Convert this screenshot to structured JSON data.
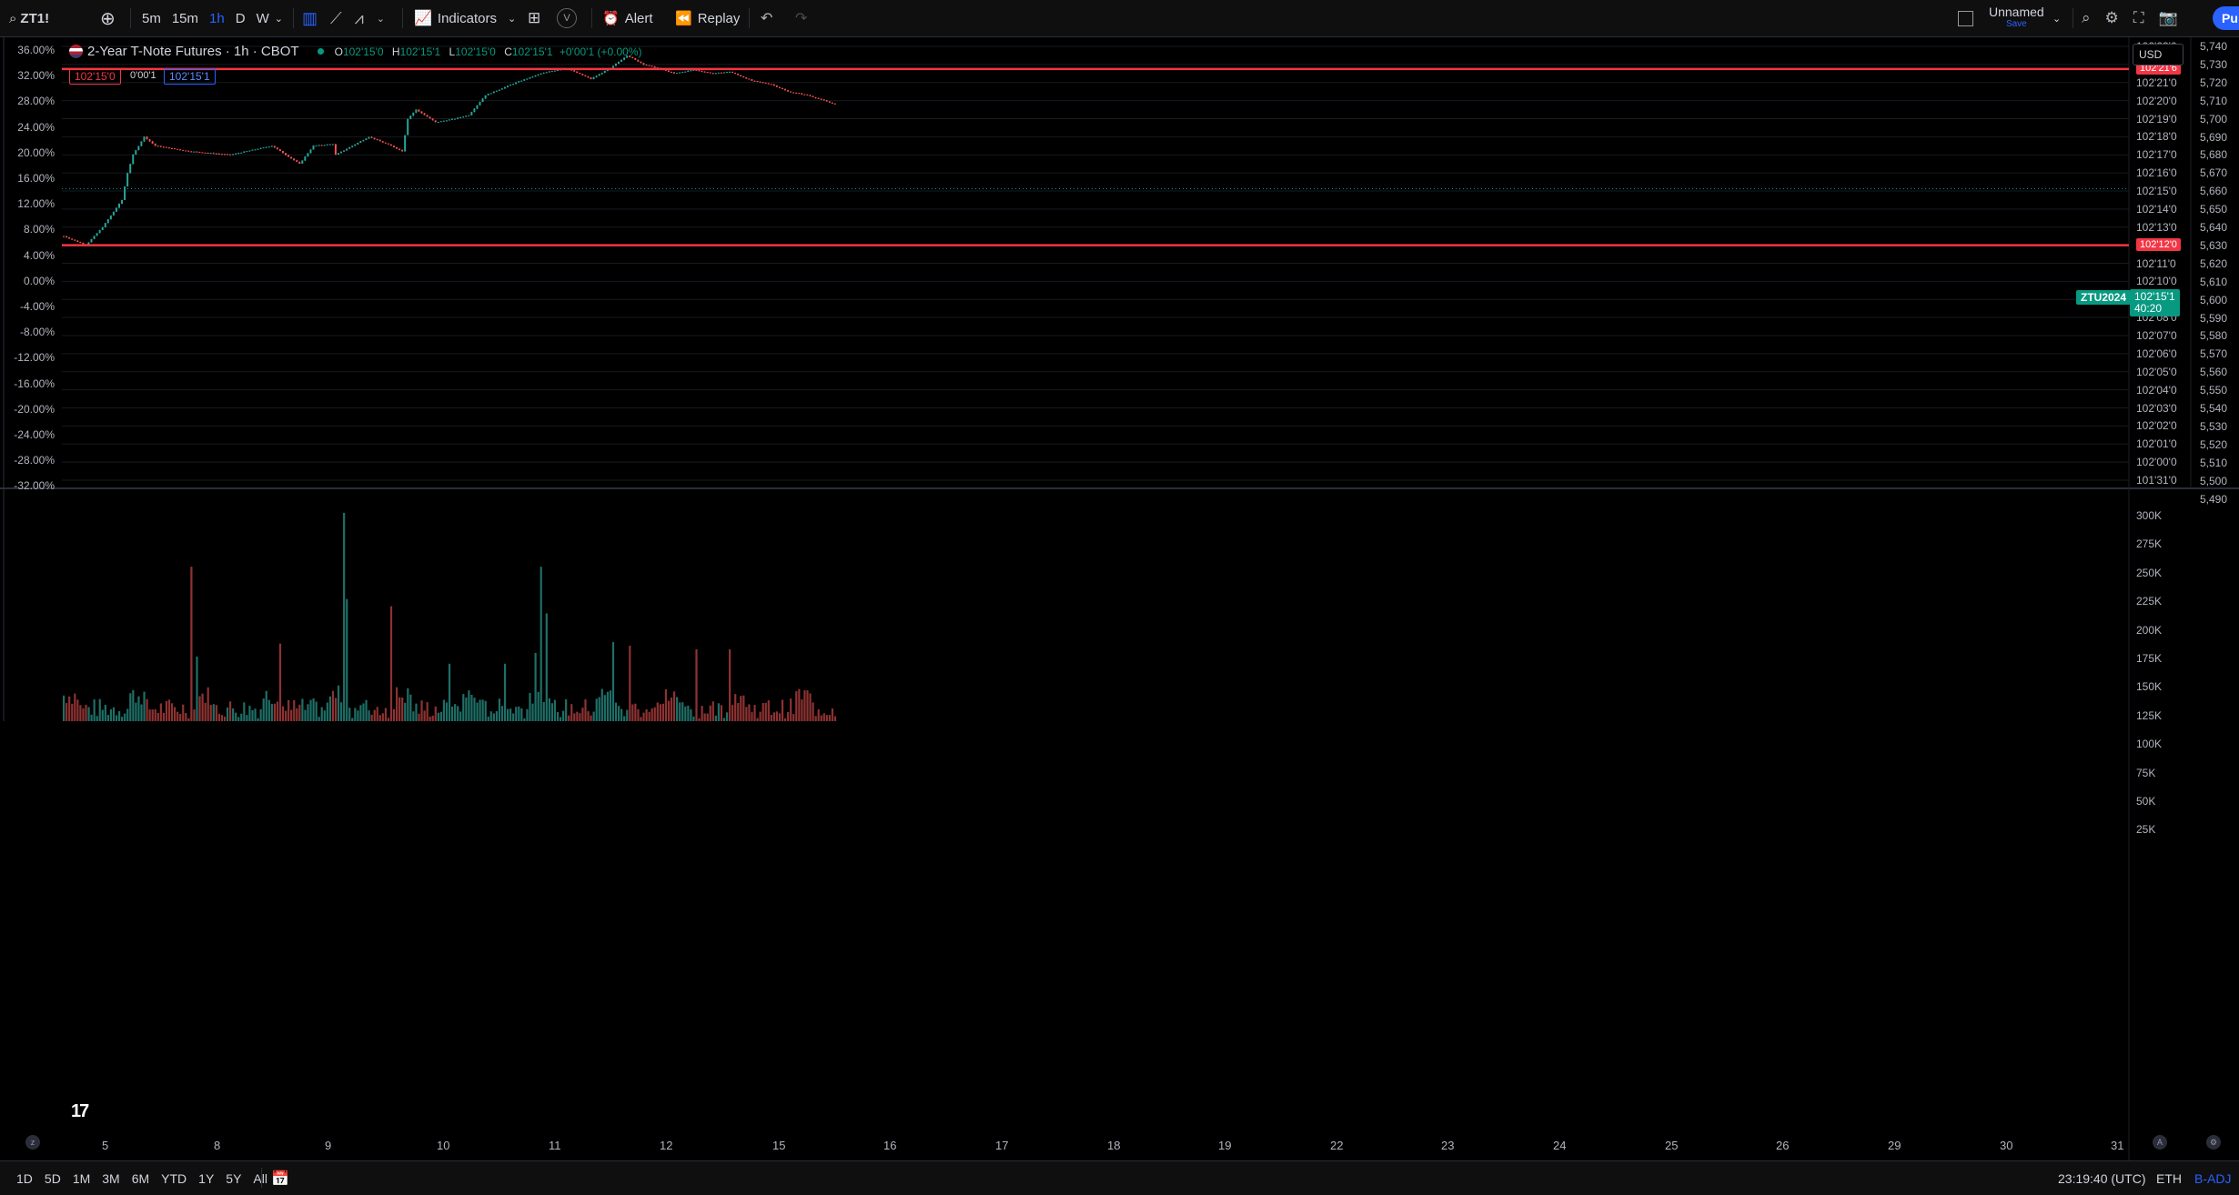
{
  "symbol": "ZT1!",
  "intervals": [
    "5m",
    "15m",
    "1h",
    "D",
    "W"
  ],
  "active_interval": "1h",
  "toolbar": {
    "indicators": "Indicators",
    "alert": "Alert",
    "replay": "Replay",
    "layout_name": "Unnamed",
    "layout_sub": "Save",
    "publish": "Pu"
  },
  "legend": {
    "title": "2-Year T-Note Futures · 1h · CBOT",
    "o_label": "O",
    "o": "102'15'0",
    "h_label": "H",
    "h": "102'15'1",
    "l_label": "L",
    "l": "102'15'0",
    "c_label": "C",
    "c": "102'15'1",
    "change": "+0'00'1 (+0.00%)",
    "bid": "102'15'0",
    "spread": "0'00'1",
    "ask": "102'15'1"
  },
  "currency": "USD",
  "right_price_ticks": [
    "102'23'0",
    "102'22'0",
    "102'21'0",
    "102'20'0",
    "102'19'0",
    "102'18'0",
    "102'17'0",
    "102'16'0",
    "102'15'0",
    "102'14'0",
    "102'13'0",
    "102'12'0",
    "102'11'0",
    "102'10'0",
    "102'09'0",
    "102'08'0",
    "102'07'0",
    "102'06'0",
    "102'05'0",
    "102'04'0",
    "102'03'0",
    "102'02'0",
    "102'01'0",
    "102'00'0",
    "101'31'0"
  ],
  "far_right_ticks": [
    "5,740",
    "5,730",
    "5,720",
    "5,710",
    "5,700",
    "5,690",
    "5,680",
    "5,670",
    "5,660",
    "5,650",
    "5,640",
    "5,630",
    "5,620",
    "5,610",
    "5,600",
    "5,590",
    "5,580",
    "5,570",
    "5,560",
    "5,550",
    "5,540",
    "5,530",
    "5,520",
    "5,510",
    "5,500",
    "5,490"
  ],
  "percent_ticks": [
    "36.00%",
    "32.00%",
    "28.00%",
    "24.00%",
    "20.00%",
    "16.00%",
    "12.00%",
    "8.00%",
    "4.00%",
    "0.00%",
    "-4.00%",
    "-8.00%",
    "-12.00%",
    "-16.00%",
    "-20.00%",
    "-24.00%",
    "-28.00%",
    "-32.00%"
  ],
  "volume_ticks": [
    "300K",
    "275K",
    "250K",
    "225K",
    "200K",
    "175K",
    "150K",
    "125K",
    "100K",
    "75K",
    "50K",
    "25K"
  ],
  "date_ticks": [
    "5",
    "8",
    "9",
    "10",
    "11",
    "12",
    "15",
    "16",
    "17",
    "18",
    "19",
    "22",
    "23",
    "24",
    "25",
    "26",
    "29",
    "30",
    "31"
  ],
  "hlines": [
    {
      "price": "102'21'6",
      "color": "#f23645"
    },
    {
      "price": "102'12'0",
      "color": "#f23645"
    }
  ],
  "last_price": {
    "symbol": "ZTU2024",
    "price": "102'15'1",
    "countdown": "40:20"
  },
  "range_buttons": [
    "1D",
    "5D",
    "1M",
    "3M",
    "6M",
    "YTD",
    "1Y",
    "5Y",
    "All"
  ],
  "clock": "23:19:40 (UTC)",
  "session": "ETH",
  "adjust": "B-ADJ",
  "colors": {
    "up": "#26a69a",
    "down": "#ef5350",
    "vol_up": "#1e6f67",
    "vol_down": "#8e3232",
    "accent": "#2962ff"
  },
  "chart_data": {
    "type": "candlestick",
    "price_unit": "32nds",
    "anchors": [
      [
        0,
        102.125
      ],
      [
        8,
        102.12
      ],
      [
        14,
        102.13
      ],
      [
        21,
        102.145
      ],
      [
        23,
        102.16
      ],
      [
        25,
        102.17
      ],
      [
        29,
        102.18
      ],
      [
        33,
        102.175
      ],
      [
        45,
        102.172
      ],
      [
        60,
        102.17
      ],
      [
        75,
        102.175
      ],
      [
        85,
        102.165
      ],
      [
        90,
        102.175
      ],
      [
        97,
        102.176
      ],
      [
        98,
        102.17
      ],
      [
        110,
        102.18
      ],
      [
        118,
        102.175
      ],
      [
        122,
        102.172
      ],
      [
        124,
        102.19
      ],
      [
        127,
        102.195
      ],
      [
        134,
        102.188
      ],
      [
        141,
        102.19
      ],
      [
        146,
        102.192
      ],
      [
        152,
        102.203
      ],
      [
        163,
        102.21
      ],
      [
        172,
        102.215
      ],
      [
        181,
        102.218
      ],
      [
        190,
        102.212
      ],
      [
        197,
        102.218
      ],
      [
        203,
        102.225
      ],
      [
        209,
        102.22
      ],
      [
        214,
        102.218
      ],
      [
        220,
        102.215
      ],
      [
        227,
        102.217
      ],
      [
        234,
        102.215
      ],
      [
        240,
        102.216
      ],
      [
        248,
        102.211
      ],
      [
        255,
        102.209
      ],
      [
        261,
        102.205
      ],
      [
        268,
        102.203
      ],
      [
        274,
        102.2
      ],
      [
        278,
        102.198
      ]
    ],
    "volume_spikes": [
      [
        46,
        215
      ],
      [
        48,
        90
      ],
      [
        78,
        108
      ],
      [
        101,
        290
      ],
      [
        102,
        170
      ],
      [
        118,
        160
      ],
      [
        139,
        80
      ],
      [
        159,
        80
      ],
      [
        170,
        95
      ],
      [
        172,
        215
      ],
      [
        174,
        150
      ],
      [
        198,
        110
      ],
      [
        204,
        105
      ],
      [
        228,
        100
      ],
      [
        240,
        100
      ]
    ],
    "volume_max": 300,
    "volume_unit": "K"
  }
}
